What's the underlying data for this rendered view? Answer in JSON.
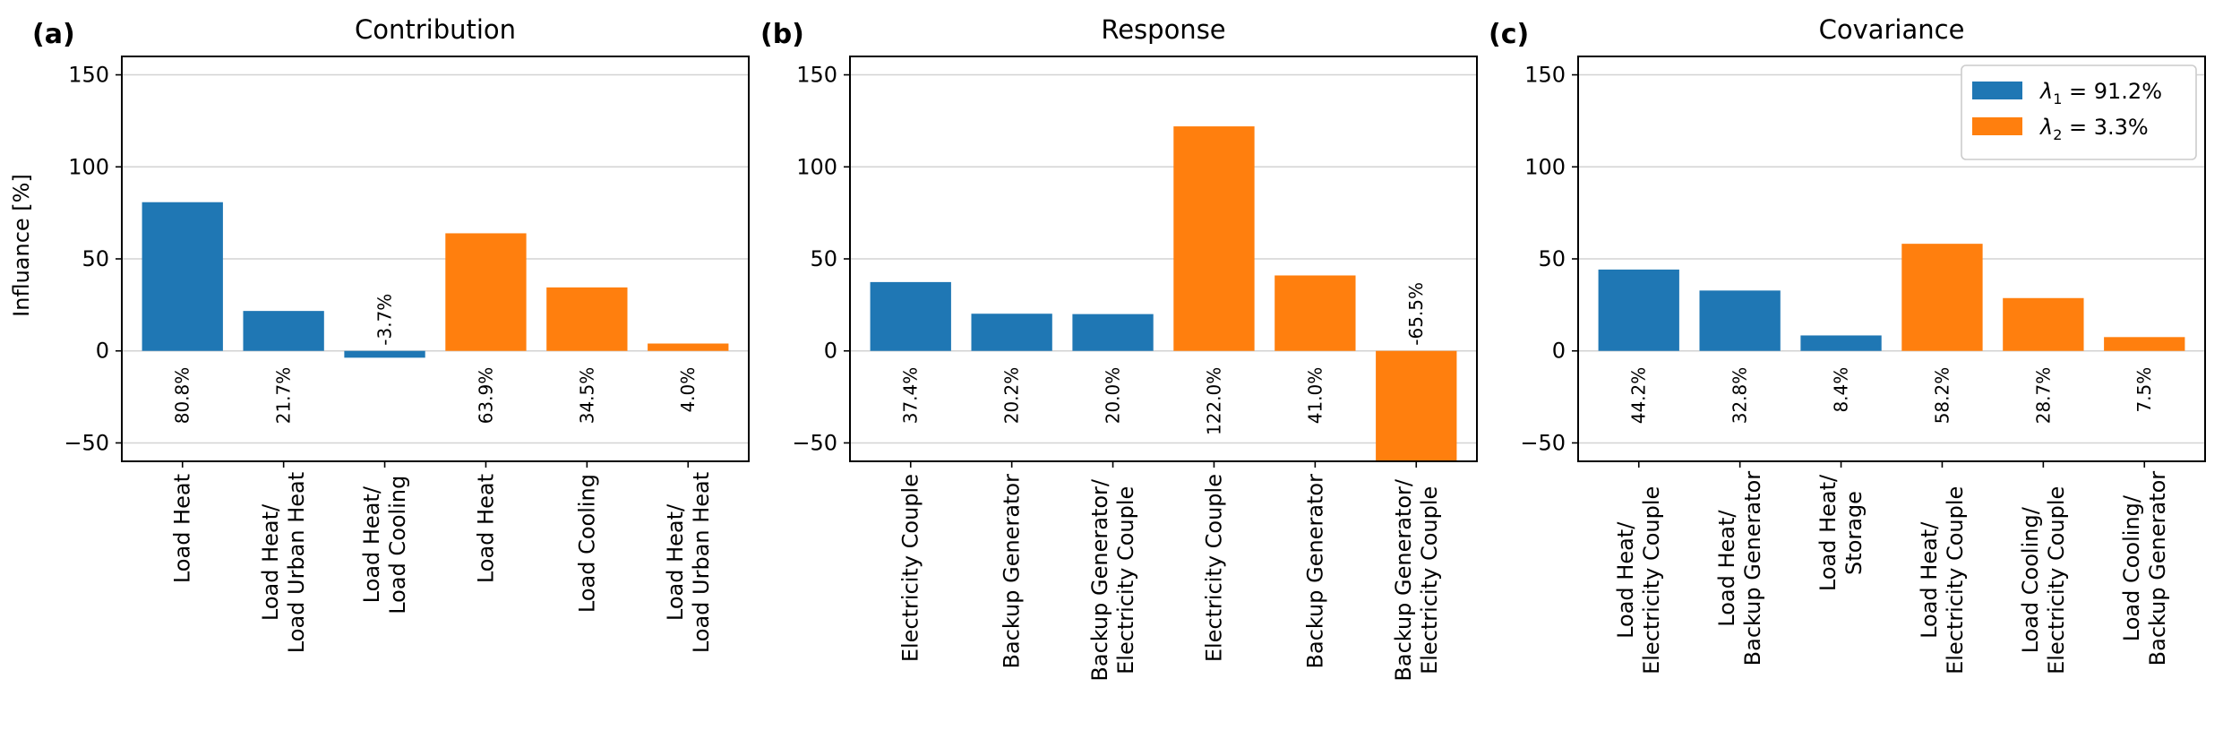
{
  "figure": {
    "colors": {
      "blue": "#1f77b4",
      "orange": "#ff7f0e",
      "grid": "#d3d3d3",
      "axes": "#000000"
    }
  },
  "chart_data": [
    {
      "type": "bar",
      "panel_label": "(a)",
      "title": "Contribution",
      "ylabel": "Influance [%]",
      "ylim": [
        -60,
        160
      ],
      "yticks": [
        -50,
        0,
        50,
        100,
        150
      ],
      "ytick_labels": [
        "−50",
        "0",
        "50",
        "100",
        "150"
      ],
      "grid": true,
      "categories": [
        [
          "Load Heat"
        ],
        [
          "Load Heat/",
          "Load Urban Heat"
        ],
        [
          "Load Heat/",
          "Load Cooling"
        ],
        [
          "Load Heat"
        ],
        [
          "Load Cooling"
        ],
        [
          "Load Heat/",
          "Load Urban Heat"
        ]
      ],
      "values": [
        80.8,
        21.7,
        -3.7,
        63.9,
        34.5,
        4.0
      ],
      "value_labels": [
        "80.8%",
        "21.7%",
        "-3.7%",
        "63.9%",
        "34.5%",
        "4.0%"
      ],
      "colors": [
        "#1f77b4",
        "#1f77b4",
        "#1f77b4",
        "#ff7f0e",
        "#ff7f0e",
        "#ff7f0e"
      ]
    },
    {
      "type": "bar",
      "panel_label": "(b)",
      "title": "Response",
      "ylabel": "",
      "ylim": [
        -60,
        160
      ],
      "yticks": [
        -50,
        0,
        50,
        100,
        150
      ],
      "ytick_labels": [
        "−50",
        "0",
        "50",
        "100",
        "150"
      ],
      "grid": true,
      "categories": [
        [
          "Electricity Couple"
        ],
        [
          "Backup Generator"
        ],
        [
          "Backup Generator/",
          "Electricity Couple"
        ],
        [
          "Electricity Couple"
        ],
        [
          "Backup Generator"
        ],
        [
          "Backup Generator/",
          "Electricity Couple"
        ]
      ],
      "values": [
        37.4,
        20.2,
        20.0,
        122.0,
        41.0,
        -65.5
      ],
      "value_labels": [
        "37.4%",
        "20.2%",
        "20.0%",
        "122.0%",
        "41.0%",
        "-65.5%"
      ],
      "colors": [
        "#1f77b4",
        "#1f77b4",
        "#1f77b4",
        "#ff7f0e",
        "#ff7f0e",
        "#ff7f0e"
      ]
    },
    {
      "type": "bar",
      "panel_label": "(c)",
      "title": "Covariance",
      "ylabel": "",
      "ylim": [
        -60,
        160
      ],
      "yticks": [
        -50,
        0,
        50,
        100,
        150
      ],
      "ytick_labels": [
        "−50",
        "0",
        "50",
        "100",
        "150"
      ],
      "grid": true,
      "categories": [
        [
          "Load Heat/",
          "Electricity Couple"
        ],
        [
          "Load Heat/",
          "Backup Generator"
        ],
        [
          "Load Heat/",
          "Storage"
        ],
        [
          "Load Heat/",
          "Electricity Couple"
        ],
        [
          "Load Cooling/",
          "Electricity Couple"
        ],
        [
          "Load Cooling/",
          "Backup Generator"
        ]
      ],
      "values": [
        44.2,
        32.8,
        8.4,
        58.2,
        28.7,
        7.5
      ],
      "value_labels": [
        "44.2%",
        "32.8%",
        "8.4%",
        "58.2%",
        "28.7%",
        "7.5%"
      ],
      "colors": [
        "#1f77b4",
        "#1f77b4",
        "#1f77b4",
        "#ff7f0e",
        "#ff7f0e",
        "#ff7f0e"
      ],
      "legend": {
        "placement": "top-right",
        "entries": [
          {
            "symbol": "λ",
            "subscript": "1",
            "text": " = 91.2%",
            "color": "#1f77b4"
          },
          {
            "symbol": "λ",
            "subscript": "2",
            "text": " = 3.3%",
            "color": "#ff7f0e"
          }
        ]
      }
    }
  ]
}
